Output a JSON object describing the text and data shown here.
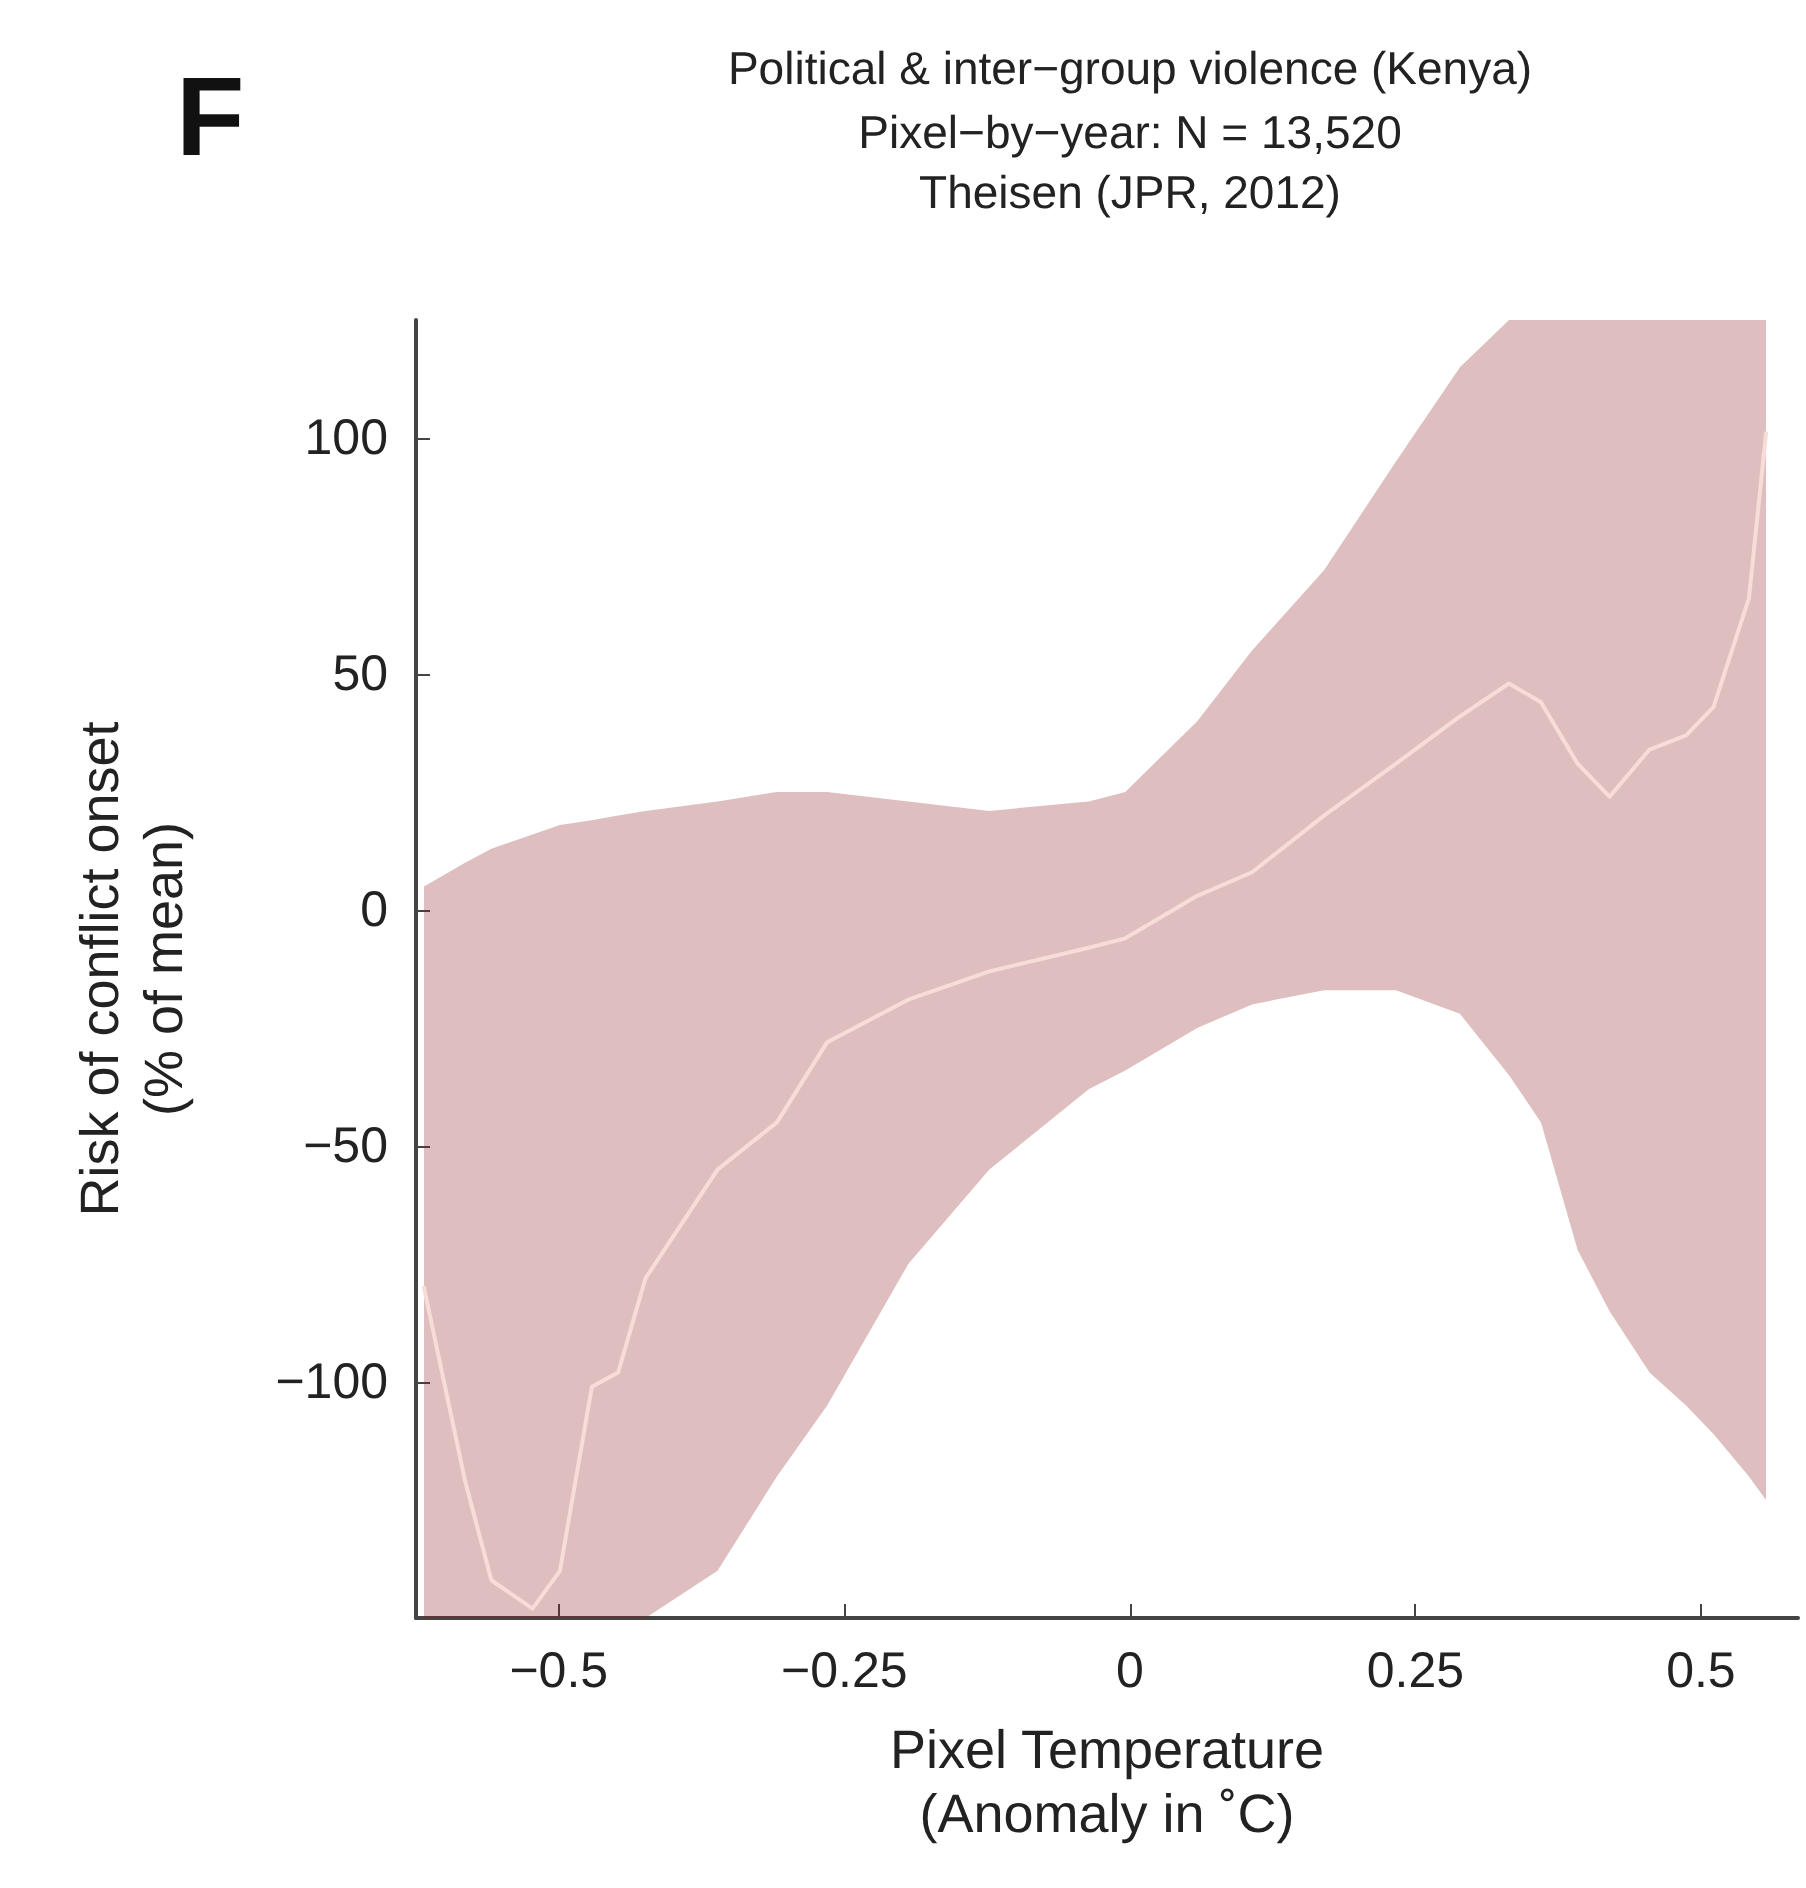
{
  "chart_data": {
    "type": "line",
    "title": "Political & inter−group violence (Kenya)",
    "subtitle": "Pixel−by−year: N = 13,520\nTheisen (JPR, 2012)",
    "annotations": [
      "F"
    ],
    "xlabel": "Pixel Temperature\n(Anomaly in ˚C)",
    "ylabel": "Risk of conflict onset\n(% of mean)",
    "x": [
      -0.618,
      -0.582,
      -0.559,
      -0.523,
      -0.499,
      -0.471,
      -0.448,
      -0.424,
      -0.361,
      -0.309,
      -0.265,
      -0.194,
      -0.123,
      -0.036,
      -0.004,
      0.059,
      0.107,
      0.17,
      0.233,
      0.289,
      0.332,
      0.36,
      0.392,
      0.42,
      0.455,
      0.487,
      0.511,
      0.542,
      0.557
    ],
    "series": [
      {
        "color": "#f7dcd8",
        "values": [
          -80,
          -121,
          -142,
          -148,
          -140,
          -101,
          -98,
          -78,
          -55,
          -45,
          -28,
          -19,
          -13,
          -8,
          -6,
          3,
          8,
          20,
          31,
          41,
          48,
          44,
          31,
          24,
          34,
          37,
          43,
          66,
          101
        ],
        "lower": [
          -150,
          -150,
          -150,
          -150,
          -150,
          -150,
          -150,
          -150,
          -140,
          -120,
          -105,
          -75,
          -55,
          -38,
          -34,
          -25,
          -20,
          -17,
          -17,
          -22,
          -35,
          -45,
          -72,
          -85,
          -98,
          -105,
          -111,
          -120,
          -125
        ],
        "upper": [
          5,
          10,
          13,
          16,
          18,
          19,
          20,
          21,
          23,
          25,
          25,
          23,
          21,
          23,
          25,
          40,
          55,
          72,
          95,
          115,
          125,
          125,
          125,
          125,
          125,
          125,
          125,
          125,
          125
        ]
      }
    ],
    "xlim": [
      -0.625,
      0.585
    ],
    "ylim": [
      -150,
      125
    ],
    "xticks": [
      -0.5,
      -0.25,
      0,
      0.25,
      0.5
    ],
    "yticks": [
      -100,
      -50,
      0,
      50,
      100
    ],
    "grid": false,
    "marker": "none",
    "line_style": "solid"
  }
}
